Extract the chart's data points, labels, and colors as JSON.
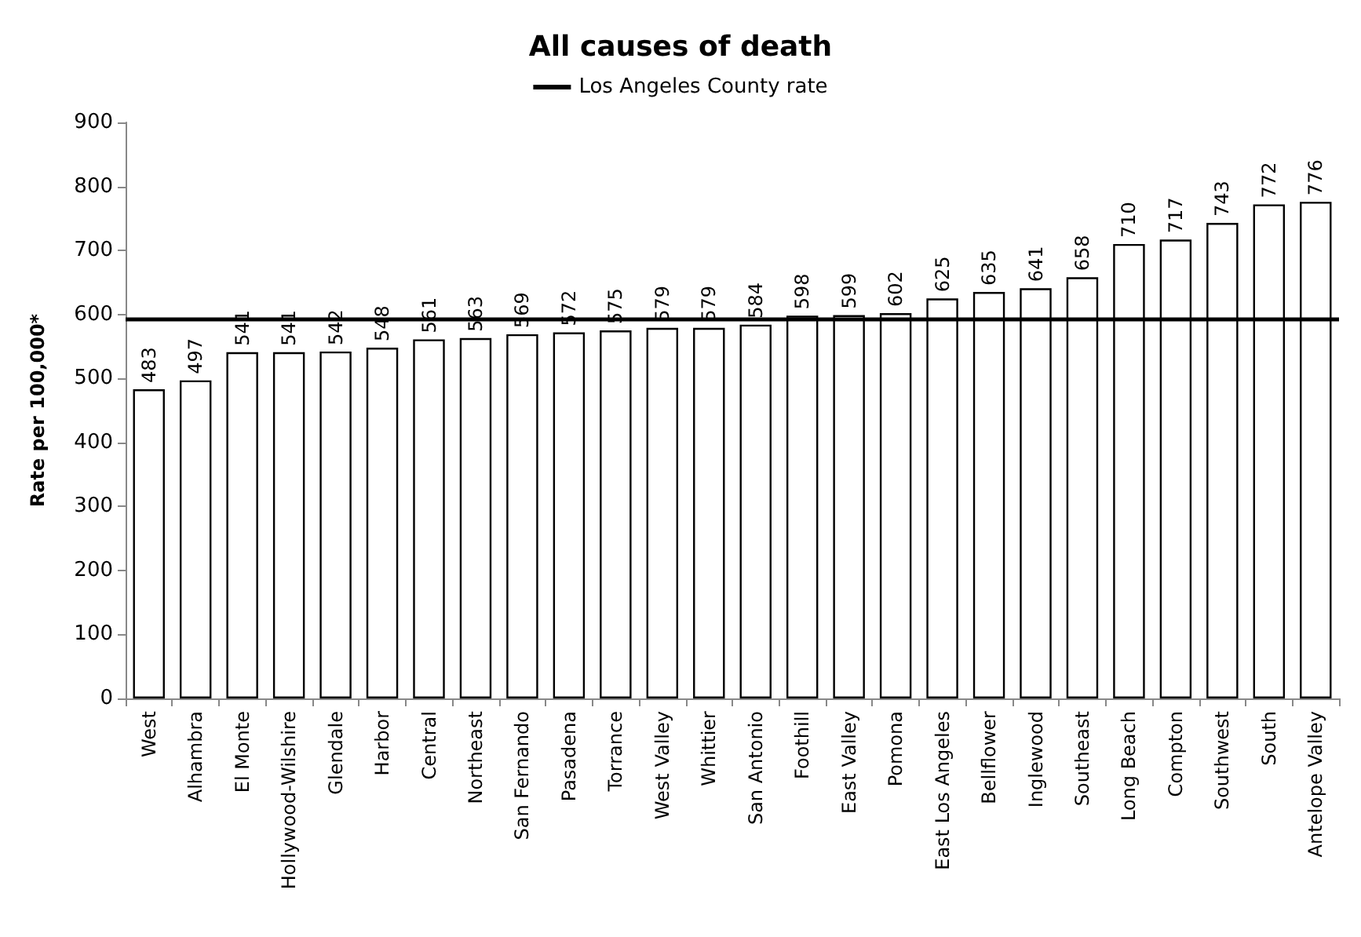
{
  "chart_data": {
    "type": "bar",
    "title": "All causes of death",
    "ylabel": "Rate per 100,000*",
    "categories": [
      "West",
      "Alhambra",
      "El Monte",
      "Hollywood-Wilshire",
      "Glendale",
      "Harbor",
      "Central",
      "Northeast",
      "San Fernando",
      "Pasadena",
      "Torrance",
      "West Valley",
      "Whittier",
      "San Antonio",
      "Foothill",
      "East Valley",
      "Pomona",
      "East Los Angeles",
      "Bellflower",
      "Inglewood",
      "Southeast",
      "Long Beach",
      "Compton",
      "Southwest",
      "South",
      "Antelope Valley"
    ],
    "values": [
      483,
      497,
      541,
      541,
      542,
      548,
      561,
      563,
      569,
      572,
      575,
      579,
      579,
      584,
      598,
      599,
      602,
      625,
      635,
      641,
      658,
      710,
      717,
      743,
      772,
      776
    ],
    "color": "#ffffff",
    "data_labels": true,
    "ylim": [
      0,
      900
    ],
    "yticks": [
      0,
      100,
      200,
      300,
      400,
      500,
      600,
      700,
      800,
      900
    ],
    "grid": false,
    "legend": "top",
    "ref_lines": [
      {
        "axis": "y",
        "value": 593,
        "label": "Los Angeles County rate",
        "color": "#000000"
      }
    ]
  }
}
